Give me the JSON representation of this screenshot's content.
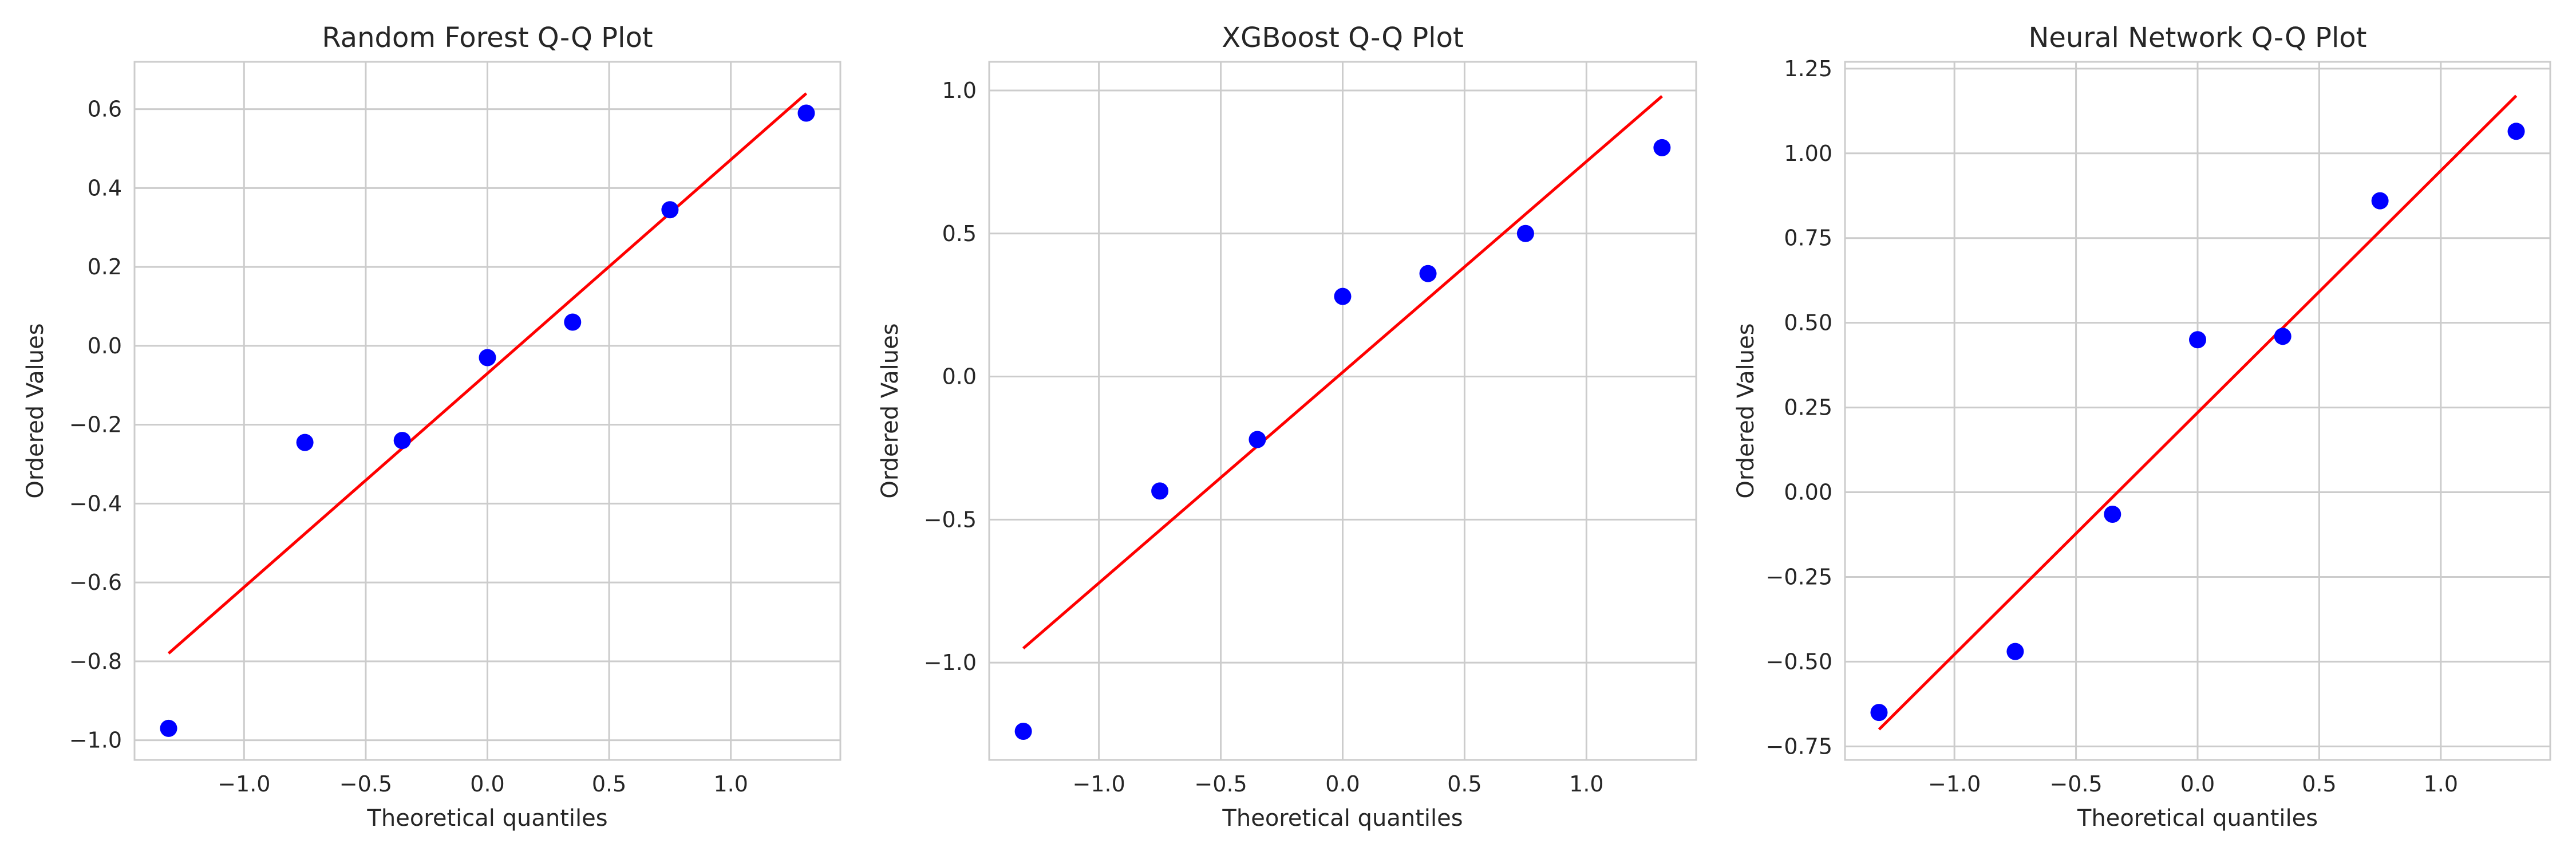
{
  "colors": {
    "points": "#0000ff",
    "fit_line": "#ff0000",
    "grid": "#cccccc",
    "spine": "#cccccc",
    "text": "#262626"
  },
  "chart_data": [
    {
      "type": "scatter",
      "title": "Random Forest Q-Q Plot",
      "xlabel": "Theoretical quantiles",
      "ylabel": "Ordered Values",
      "grid": true,
      "xlim": [
        -1.45,
        1.45
      ],
      "ylim": [
        -1.05,
        0.72
      ],
      "xticks": [
        -1.0,
        -0.5,
        0.0,
        0.5,
        1.0
      ],
      "xtick_labels": [
        "−1.0",
        "−0.5",
        "0.0",
        "0.5",
        "1.0"
      ],
      "yticks": [
        -1.0,
        -0.8,
        -0.6,
        -0.4,
        -0.2,
        0.0,
        0.2,
        0.4,
        0.6
      ],
      "ytick_labels": [
        "−1.0",
        "−0.8",
        "−0.6",
        "−0.4",
        "−0.2",
        "0.0",
        "0.2",
        "0.4",
        "0.6"
      ],
      "points": {
        "x": [
          -1.31,
          -0.75,
          -0.35,
          0.0,
          0.35,
          0.75,
          1.31
        ],
        "y": [
          -0.97,
          -0.245,
          -0.24,
          -0.03,
          0.06,
          0.345,
          0.59
        ]
      },
      "fit_line": {
        "x": [
          -1.31,
          1.31
        ],
        "y": [
          -0.78,
          0.64
        ]
      }
    },
    {
      "type": "scatter",
      "title": "XGBoost Q-Q Plot",
      "xlabel": "Theoretical quantiles",
      "ylabel": "Ordered Values",
      "grid": true,
      "xlim": [
        -1.45,
        1.45
      ],
      "ylim": [
        -1.34,
        1.1
      ],
      "xticks": [
        -1.0,
        -0.5,
        0.0,
        0.5,
        1.0
      ],
      "xtick_labels": [
        "−1.0",
        "−0.5",
        "0.0",
        "0.5",
        "1.0"
      ],
      "yticks": [
        -1.0,
        -0.5,
        0.0,
        0.5,
        1.0
      ],
      "ytick_labels": [
        "−1.0",
        "−0.5",
        "0.0",
        "0.5",
        "1.0"
      ],
      "points": {
        "x": [
          -1.31,
          -0.75,
          -0.35,
          0.0,
          0.35,
          0.75,
          1.31
        ],
        "y": [
          -1.24,
          -0.4,
          -0.22,
          0.28,
          0.36,
          0.5,
          0.8
        ]
      },
      "fit_line": {
        "x": [
          -1.31,
          1.31
        ],
        "y": [
          -0.95,
          0.98
        ]
      }
    },
    {
      "type": "scatter",
      "title": "Neural Network Q-Q Plot",
      "xlabel": "Theoretical quantiles",
      "ylabel": "Ordered Values",
      "grid": true,
      "xlim": [
        -1.45,
        1.45
      ],
      "ylim": [
        -0.79,
        1.27
      ],
      "xticks": [
        -1.0,
        -0.5,
        0.0,
        0.5,
        1.0
      ],
      "xtick_labels": [
        "−1.0",
        "−0.5",
        "0.0",
        "0.5",
        "1.0"
      ],
      "yticks": [
        -0.75,
        -0.5,
        -0.25,
        0.0,
        0.25,
        0.5,
        0.75,
        1.0,
        1.25
      ],
      "ytick_labels": [
        "−0.75",
        "−0.50",
        "−0.25",
        "0.00",
        "0.25",
        "0.50",
        "0.75",
        "1.00",
        "1.25"
      ],
      "points": {
        "x": [
          -1.31,
          -0.75,
          -0.35,
          0.0,
          0.35,
          0.75,
          1.31
        ],
        "y": [
          -0.65,
          -0.47,
          -0.065,
          0.45,
          0.46,
          0.86,
          1.065
        ]
      },
      "fit_line": {
        "x": [
          -1.31,
          1.31
        ],
        "y": [
          -0.7,
          1.17
        ]
      }
    }
  ]
}
